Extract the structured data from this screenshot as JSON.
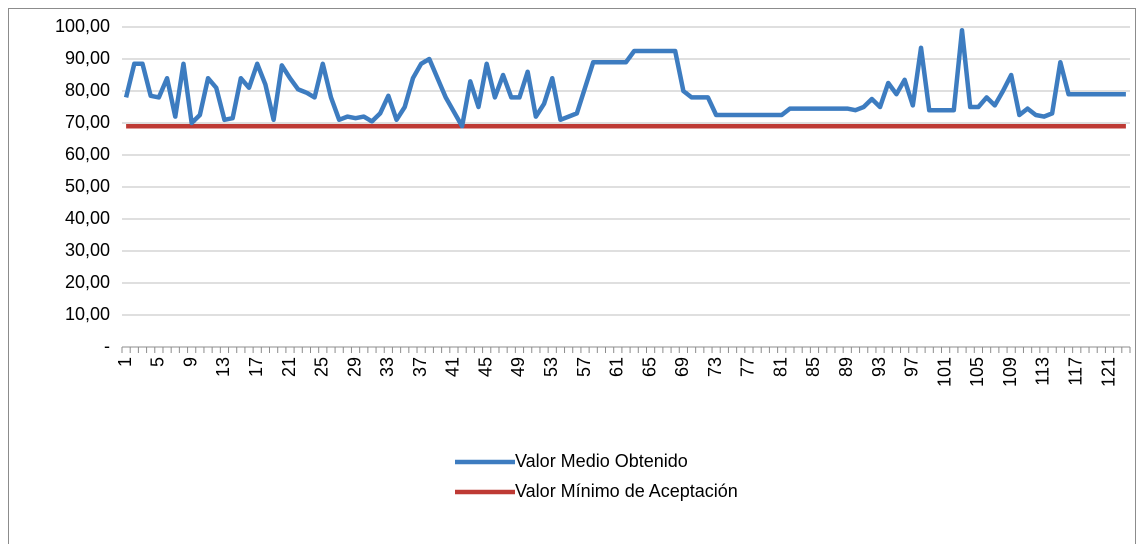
{
  "chart_data": {
    "type": "line",
    "categories": [
      "1",
      null,
      null,
      null,
      "5",
      null,
      null,
      null,
      "9",
      null,
      null,
      null,
      "13",
      null,
      null,
      null,
      "17",
      null,
      null,
      null,
      "21",
      null,
      null,
      null,
      "25",
      null,
      null,
      null,
      "29",
      null,
      null,
      null,
      "33",
      null,
      null,
      null,
      "37",
      null,
      null,
      null,
      "41",
      null,
      null,
      null,
      "45",
      null,
      null,
      null,
      "49",
      null,
      null,
      null,
      "53",
      null,
      null,
      null,
      "57",
      null,
      null,
      null,
      "61",
      null,
      null,
      null,
      "65",
      null,
      null,
      null,
      "69",
      null,
      null,
      null,
      "73",
      null,
      null,
      null,
      "77",
      null,
      null,
      null,
      "81",
      null,
      null,
      null,
      "85",
      null,
      null,
      null,
      "89",
      null,
      null,
      null,
      "93",
      null,
      null,
      null,
      "97",
      null,
      null,
      null,
      "101",
      null,
      null,
      null,
      "105",
      null,
      null,
      null,
      "109",
      null,
      null,
      null,
      "113",
      null,
      null,
      null,
      "117",
      null,
      null,
      null,
      "121",
      null,
      null
    ],
    "series": [
      {
        "name": "Valor Medio Obtenido",
        "color": "#3d7cc0",
        "values": [
          78,
          88.5,
          88.5,
          78.5,
          78,
          84,
          72,
          88.5,
          70,
          72.5,
          84,
          81,
          71,
          71.5,
          84,
          81,
          88.5,
          82,
          71,
          88,
          84,
          80.5,
          79.5,
          78,
          88.5,
          78,
          71,
          72,
          71.5,
          72,
          70.5,
          73,
          78.5,
          71,
          75,
          84,
          88.5,
          90,
          84,
          78,
          73.5,
          69,
          83,
          75,
          88.5,
          78,
          85,
          78,
          78,
          86,
          72,
          76,
          84,
          71,
          72,
          73,
          81,
          89,
          89,
          89,
          89,
          89,
          92.5,
          92.5,
          92.5,
          92.5,
          92.5,
          92.5,
          80,
          78,
          78,
          78,
          72.5,
          72.5,
          72.5,
          72.5,
          72.5,
          72.5,
          72.5,
          72.5,
          72.5,
          74.5,
          74.5,
          74.5,
          74.5,
          74.5,
          74.5,
          74.5,
          74.5,
          74,
          75,
          77.5,
          75,
          82.5,
          79,
          83.5,
          75.5,
          93.5,
          74,
          74,
          74,
          74,
          99,
          75,
          75,
          78,
          75.5,
          80,
          85,
          72.5,
          74.5,
          72.5,
          72,
          73,
          89,
          79,
          79,
          79,
          79,
          79,
          79,
          79,
          79
        ]
      },
      {
        "name": "Valor Mínimo de Aceptación",
        "color": "#be3a34",
        "values": [
          69,
          69,
          69,
          69,
          69,
          69,
          69,
          69,
          69,
          69,
          69,
          69,
          69,
          69,
          69,
          69,
          69,
          69,
          69,
          69,
          69,
          69,
          69,
          69,
          69,
          69,
          69,
          69,
          69,
          69,
          69,
          69,
          69,
          69,
          69,
          69,
          69,
          69,
          69,
          69,
          69,
          69,
          69,
          69,
          69,
          69,
          69,
          69,
          69,
          69,
          69,
          69,
          69,
          69,
          69,
          69,
          69,
          69,
          69,
          69,
          69,
          69,
          69,
          69,
          69,
          69,
          69,
          69,
          69,
          69,
          69,
          69,
          69,
          69,
          69,
          69,
          69,
          69,
          69,
          69,
          69,
          69,
          69,
          69,
          69,
          69,
          69,
          69,
          69,
          69,
          69,
          69,
          69,
          69,
          69,
          69,
          69,
          69,
          69,
          69,
          69,
          69,
          69,
          69,
          69,
          69,
          69,
          69,
          69,
          69,
          69,
          69,
          69,
          69,
          69,
          69,
          69,
          69,
          69,
          69,
          69,
          69,
          69
        ]
      }
    ],
    "ylim": [
      0,
      100
    ],
    "yticks": [
      {
        "value": 0,
        "label": "-"
      },
      {
        "value": 10,
        "label": "10,00"
      },
      {
        "value": 20,
        "label": "20,00"
      },
      {
        "value": 30,
        "label": "30,00"
      },
      {
        "value": 40,
        "label": "40,00"
      },
      {
        "value": 50,
        "label": "50,00"
      },
      {
        "value": 60,
        "label": "60,00"
      },
      {
        "value": 70,
        "label": "70,00"
      },
      {
        "value": 80,
        "label": "80,00"
      },
      {
        "value": 90,
        "label": "90,00"
      },
      {
        "value": 100,
        "label": "100,00"
      }
    ],
    "grid": true,
    "legend": "bottom"
  }
}
